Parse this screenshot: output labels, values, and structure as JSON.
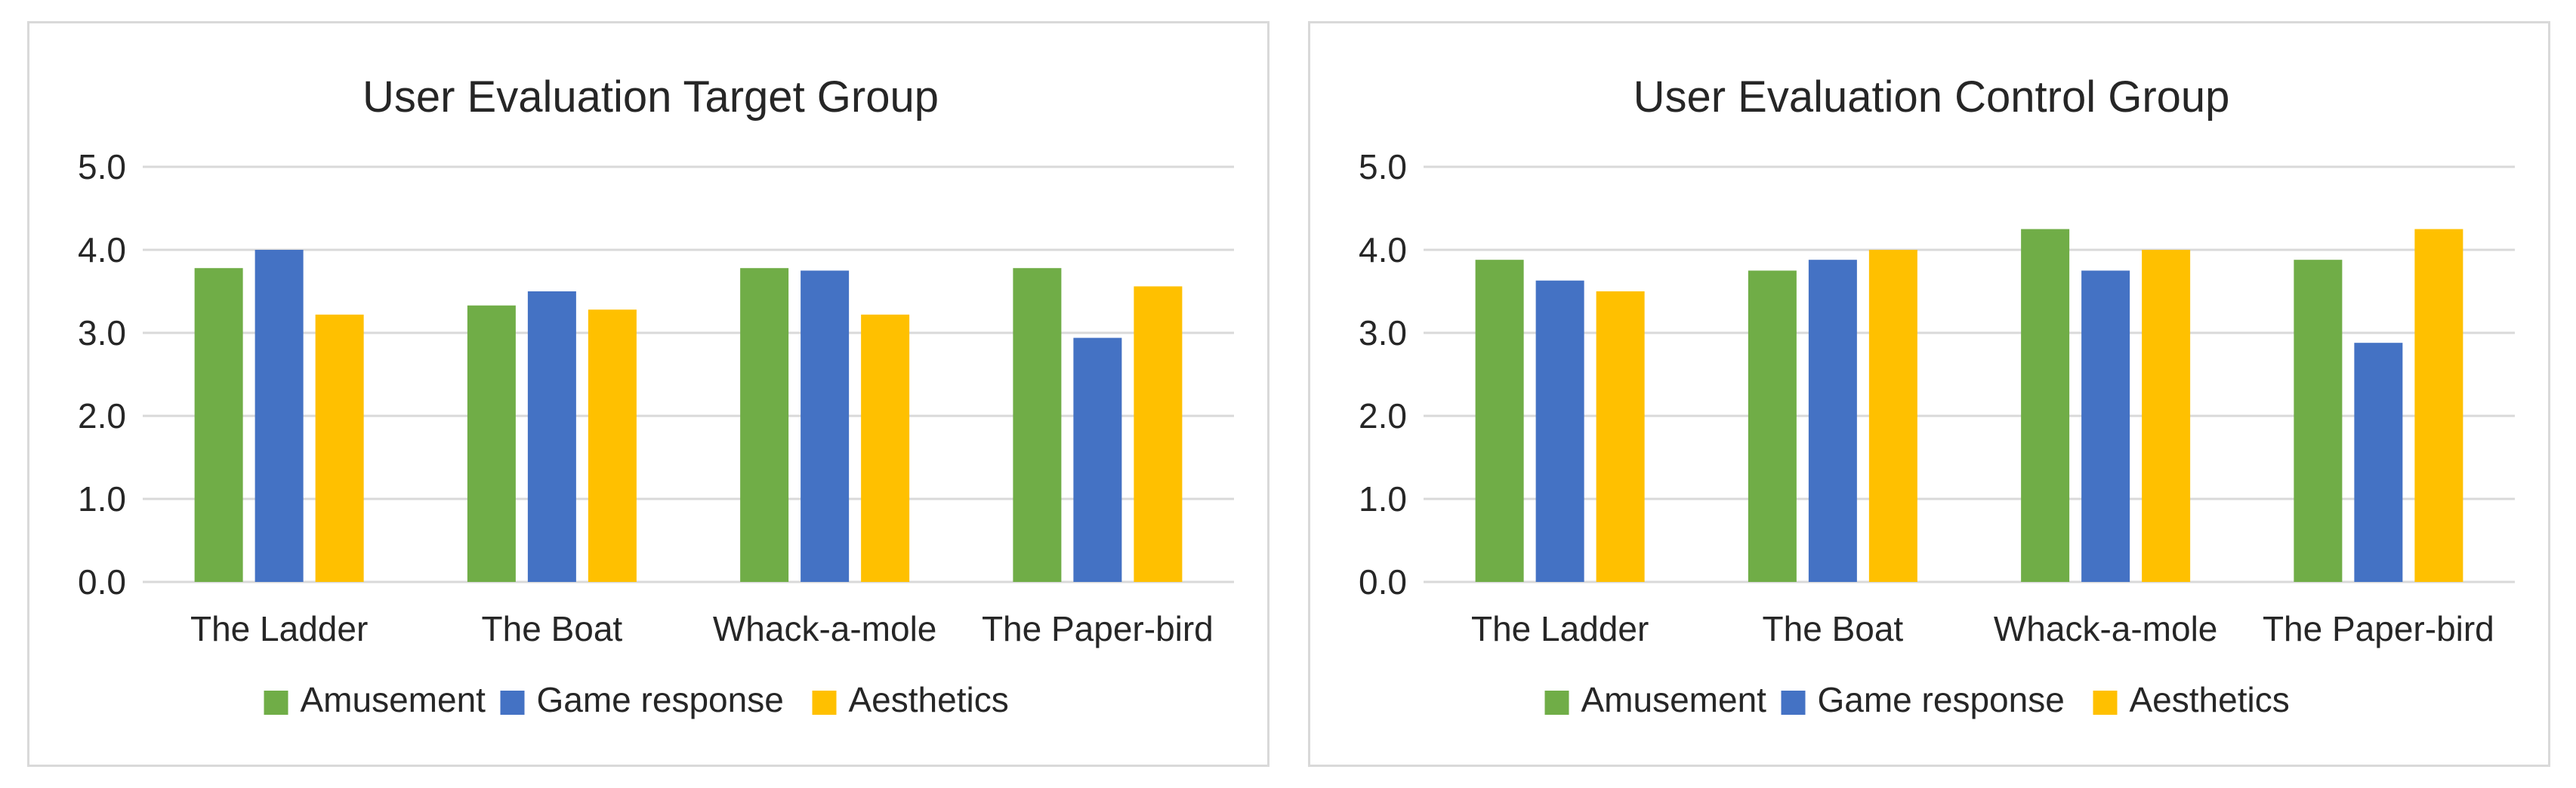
{
  "chart_data": [
    {
      "type": "bar",
      "title": "User Evaluation Target Group",
      "categories": [
        "The Ladder",
        "The Boat",
        "Whack-a-mole",
        "The Paper-bird"
      ],
      "series": [
        {
          "name": "Amusement",
          "color": "#70ad47",
          "values": [
            3.78,
            3.33,
            3.78,
            3.78
          ]
        },
        {
          "name": "Game response",
          "color": "#4472c4",
          "values": [
            4.0,
            3.5,
            3.75,
            2.94
          ]
        },
        {
          "name": "Aesthetics",
          "color": "#ffc000",
          "values": [
            3.22,
            3.28,
            3.22,
            3.56
          ]
        }
      ],
      "ylim": [
        0,
        5
      ],
      "yticks": [
        "0.0",
        "1.0",
        "2.0",
        "3.0",
        "4.0",
        "5.0"
      ],
      "grid": true,
      "legend": "bottom"
    },
    {
      "type": "bar",
      "title": "User Evaluation Control Group",
      "categories": [
        "The Ladder",
        "The Boat",
        "Whack-a-mole",
        "The Paper-bird"
      ],
      "series": [
        {
          "name": "Amusement",
          "color": "#70ad47",
          "values": [
            3.88,
            3.75,
            4.25,
            3.88
          ]
        },
        {
          "name": "Game response",
          "color": "#4472c4",
          "values": [
            3.63,
            3.88,
            3.75,
            2.88
          ]
        },
        {
          "name": "Aesthetics",
          "color": "#ffc000",
          "values": [
            3.5,
            4.0,
            4.0,
            4.25
          ]
        }
      ],
      "ylim": [
        0,
        5
      ],
      "yticks": [
        "0.0",
        "1.0",
        "2.0",
        "3.0",
        "4.0",
        "5.0"
      ],
      "grid": true,
      "legend": "bottom"
    }
  ]
}
